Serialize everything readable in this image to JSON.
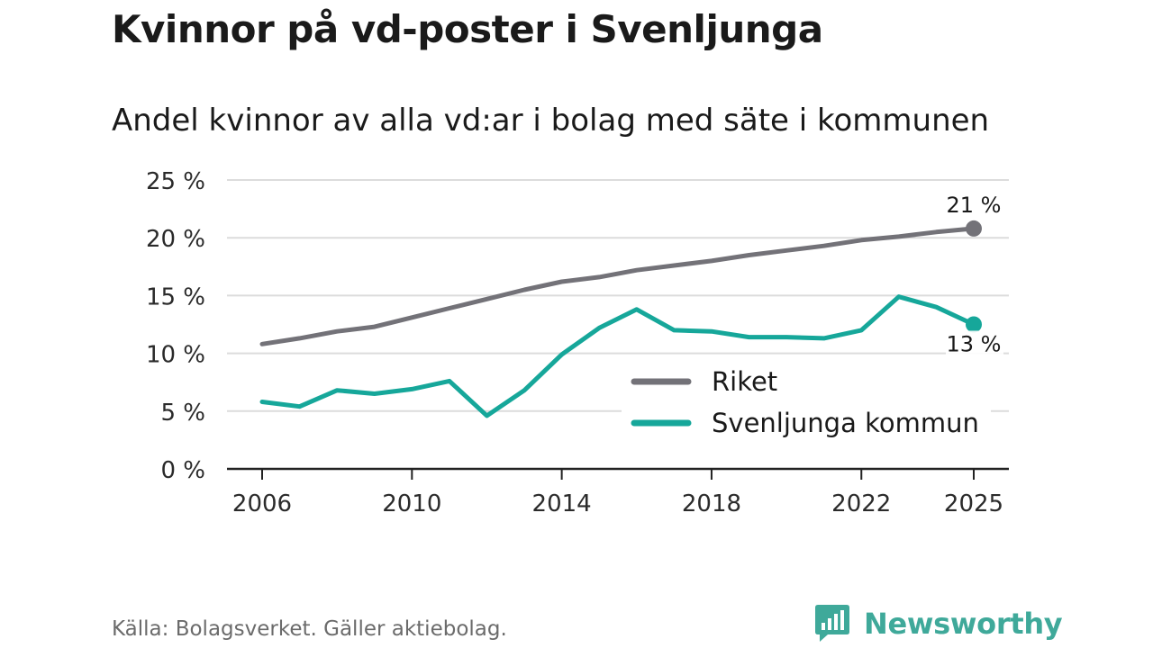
{
  "title": "Kvinnor på vd-poster i Svenljunga",
  "subtitle": "Andel kvinnor av alla vd:ar i bolag med säte i kommunen",
  "source": "Källa: Bolagsverket. Gäller aktiebolag.",
  "brand": {
    "name": "Newsworthy",
    "color": "#3fa99a",
    "icon": "newsworthy-logo-icon"
  },
  "chart_data": {
    "type": "line",
    "title": "Andel kvinnor av alla vd:ar i bolag med säte i kommunen",
    "xlabel": "",
    "ylabel": "",
    "x": [
      2006,
      2007,
      2008,
      2009,
      2010,
      2011,
      2012,
      2013,
      2014,
      2015,
      2016,
      2017,
      2018,
      2019,
      2020,
      2021,
      2022,
      2023,
      2024,
      2025
    ],
    "xlim": [
      2006,
      2025
    ],
    "ylim": [
      0,
      25
    ],
    "y_ticks": [
      0,
      5,
      10,
      15,
      20,
      25
    ],
    "y_tick_labels": [
      "0 %",
      "5 %",
      "10 %",
      "15 %",
      "20 %",
      "25 %"
    ],
    "x_ticks": [
      2006,
      2010,
      2014,
      2018,
      2022,
      2025
    ],
    "x_tick_labels": [
      "2006",
      "2010",
      "2014",
      "2018",
      "2022",
      "2025"
    ],
    "grid": true,
    "legend_position": "bottom-right",
    "series": [
      {
        "name": "Riket",
        "color": "#737278",
        "values": [
          10.8,
          11.3,
          11.9,
          12.3,
          13.1,
          13.9,
          14.7,
          15.5,
          16.2,
          16.6,
          17.2,
          17.6,
          18.0,
          18.5,
          18.9,
          19.3,
          19.8,
          20.1,
          20.5,
          20.8
        ],
        "end_label": "21 %"
      },
      {
        "name": "Svenljunga kommun",
        "color": "#16a79a",
        "values": [
          5.8,
          5.4,
          6.8,
          6.5,
          6.9,
          7.6,
          4.6,
          6.8,
          9.9,
          12.2,
          13.8,
          12.0,
          11.9,
          11.4,
          11.4,
          11.3,
          12.0,
          14.9,
          14.0,
          12.5
        ],
        "end_label": "13 %"
      }
    ]
  }
}
